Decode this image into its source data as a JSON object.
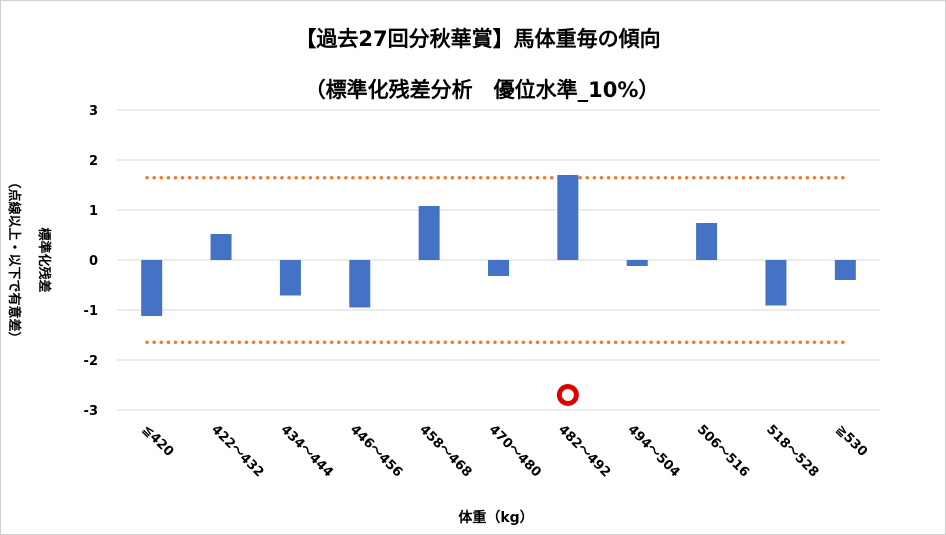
{
  "chart_data": {
    "type": "bar",
    "title": "【過去27回分秋華賞】馬体重毎の傾向",
    "subtitle": "（標準化残差分析　優位水準_10%）",
    "xlabel": "体重（kg）",
    "ylabel_main": "標準化残差",
    "ylabel_sub": "（点線以上・以下で有意差）",
    "categories": [
      "≦420",
      "422～432",
      "434～444",
      "446～456",
      "458～468",
      "470～480",
      "482～492",
      "494～504",
      "506～516",
      "518～528",
      "≧530"
    ],
    "values": [
      -1.12,
      0.52,
      -0.71,
      -0.95,
      1.08,
      -0.32,
      1.7,
      -0.12,
      0.74,
      -0.91,
      -0.4
    ],
    "ylim": [
      -3,
      3
    ],
    "yticks": [
      3,
      2,
      1,
      0,
      -1,
      -2,
      -3
    ],
    "threshold_upper": 1.645,
    "threshold_lower": -1.645,
    "marker_category": "482～492",
    "marker_y": -2.7,
    "bar_color": "#4472C4",
    "threshold_color": "#ED7D31",
    "marker_color": "#E00000",
    "grid": true
  }
}
